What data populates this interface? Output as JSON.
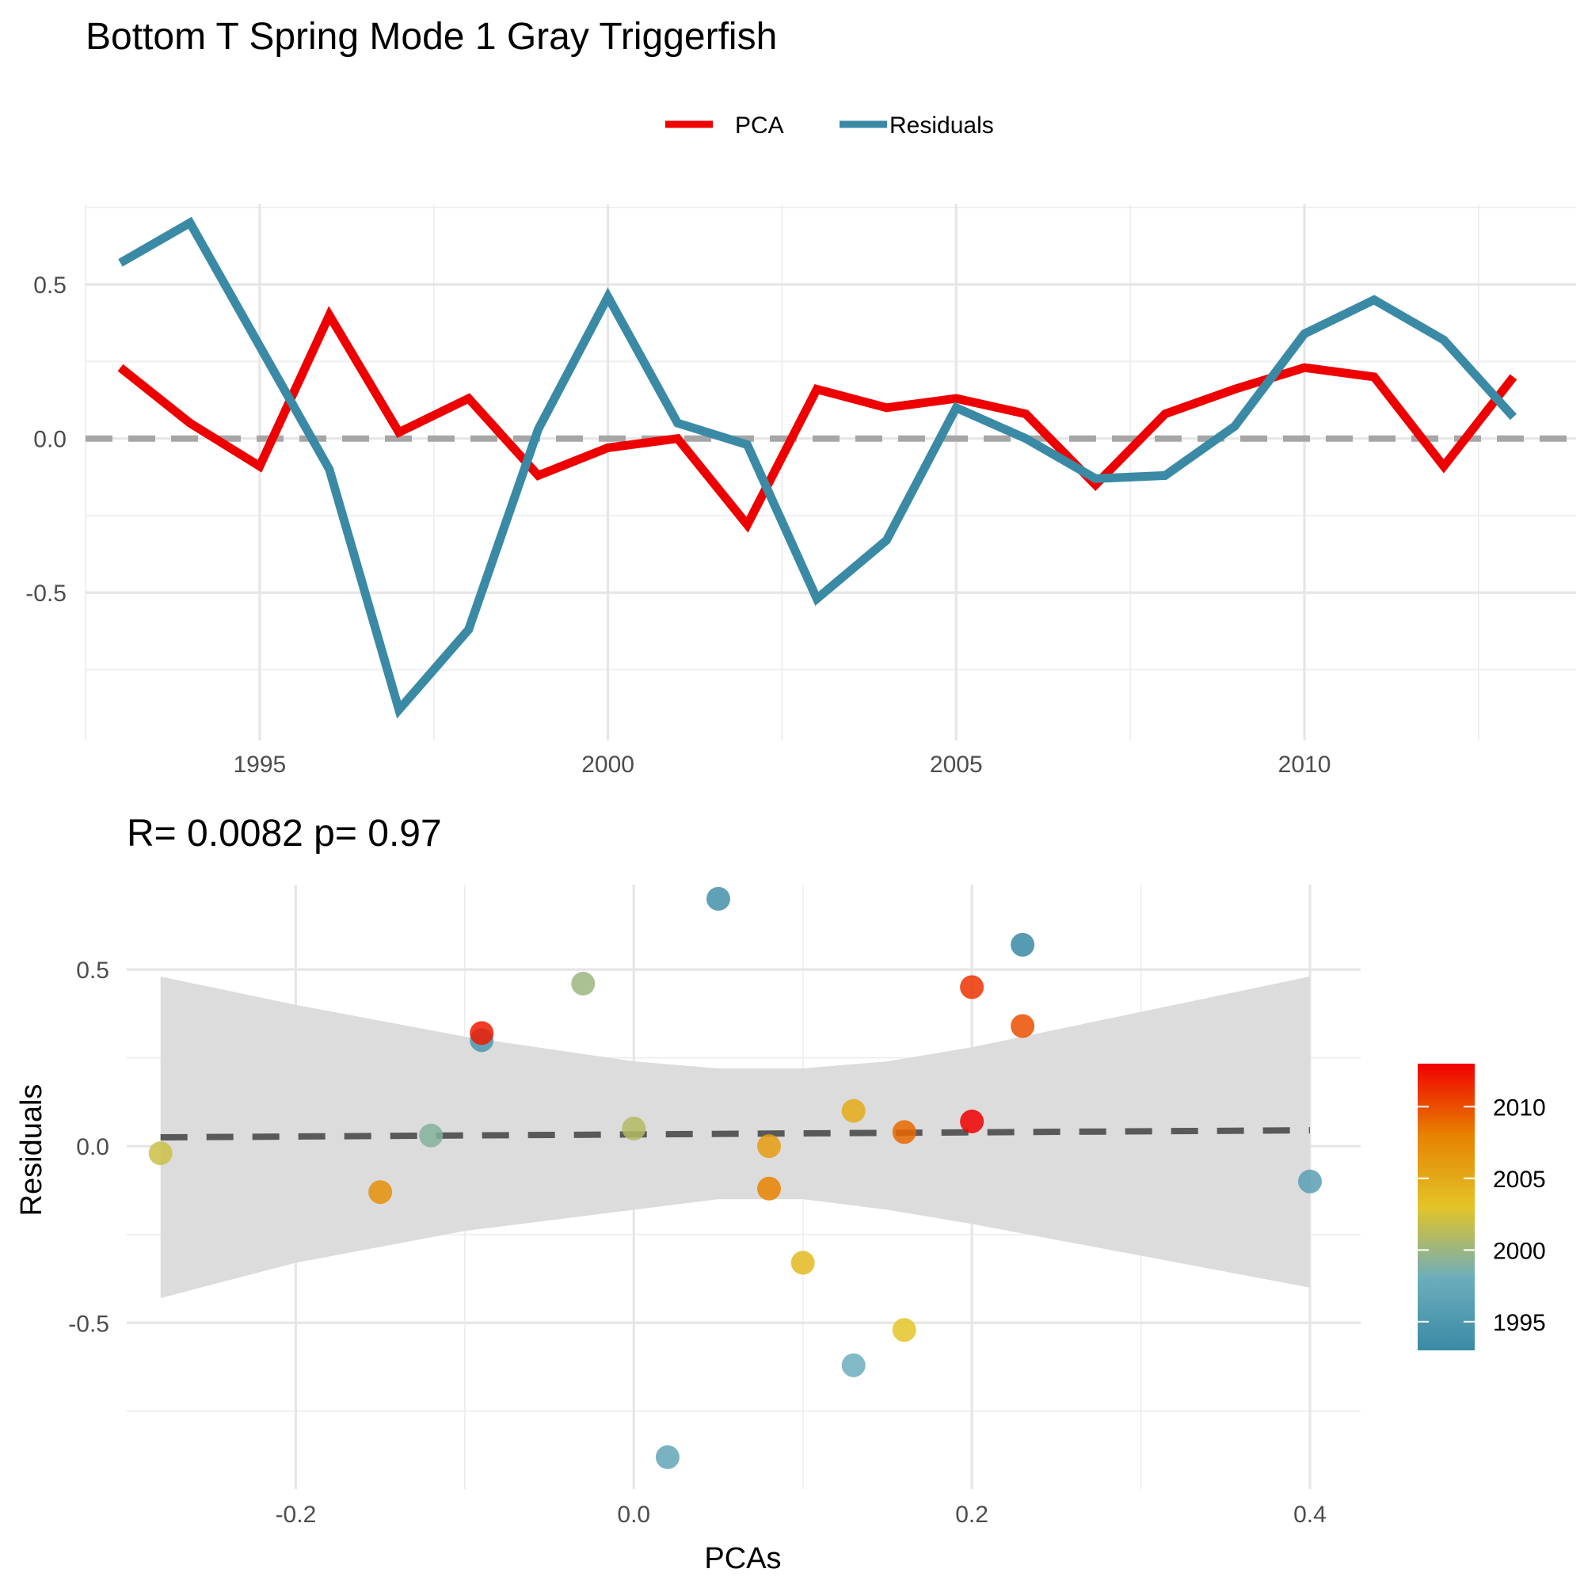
{
  "title": "Bottom T Spring Mode 1 Gray Triggerfish",
  "colors": {
    "pca": "#ee0000",
    "residuals": "#3a8aa5",
    "zero_line": "#a6a6a6",
    "fit_line": "#595959",
    "ribbon": "#dcdcdc",
    "gradient": [
      "#3a8aa5",
      "#6cadbc",
      "#e3c428",
      "#e78200",
      "#f00000"
    ]
  },
  "chart_data": [
    {
      "type": "line",
      "title": "",
      "legend": {
        "position": "top",
        "entries": [
          "PCA",
          "Residuals"
        ]
      },
      "x": [
        1993,
        1994,
        1995,
        1996,
        1997,
        1998,
        1999,
        2000,
        2001,
        2002,
        2003,
        2004,
        2005,
        2006,
        2007,
        2008,
        2009,
        2010,
        2011,
        2012,
        2013
      ],
      "series": [
        {
          "name": "PCA",
          "color": "#ee0000",
          "values": [
            0.23,
            0.05,
            -0.09,
            0.4,
            0.02,
            0.13,
            -0.12,
            -0.03,
            0.0,
            -0.28,
            0.16,
            0.1,
            0.13,
            0.08,
            -0.15,
            0.08,
            0.16,
            0.23,
            0.2,
            -0.09,
            0.2
          ]
        },
        {
          "name": "Residuals",
          "color": "#3a8aa5",
          "values": [
            0.57,
            0.7,
            0.3,
            -0.1,
            -0.88,
            -0.62,
            0.03,
            0.46,
            0.05,
            -0.02,
            -0.52,
            -0.33,
            0.1,
            0.0,
            -0.13,
            -0.12,
            0.04,
            0.34,
            0.45,
            0.32,
            0.07
          ]
        }
      ],
      "xlim": [
        1992.5,
        2013.9
      ],
      "ylim": [
        -0.98,
        0.76
      ],
      "xticks": [
        1995,
        2000,
        2005,
        2010
      ],
      "xtick_labels": [
        "1995",
        "2000",
        "2005",
        "2010"
      ],
      "yticks": [
        -0.5,
        0.0,
        0.5
      ],
      "ytick_labels": [
        "-0.5",
        "0.0",
        "0.5"
      ],
      "reference_line": 0,
      "grid": true
    },
    {
      "type": "scatter",
      "title": "R= 0.0082  p= 0.97",
      "xlabel": "PCAs",
      "ylabel": "Residuals",
      "xlim": [
        -0.3,
        0.43
      ],
      "ylim": [
        -0.97,
        0.74
      ],
      "xticks": [
        -0.2,
        0.0,
        0.2,
        0.4
      ],
      "xtick_labels": [
        "-0.2",
        "0.0",
        "0.2",
        "0.4"
      ],
      "yticks": [
        -0.5,
        0.0,
        0.5
      ],
      "ytick_labels": [
        "-0.5",
        "0.0",
        "0.5"
      ],
      "points": [
        {
          "x": 0.23,
          "y": 0.57,
          "year": 1993
        },
        {
          "x": 0.05,
          "y": 0.7,
          "year": 1994
        },
        {
          "x": -0.09,
          "y": 0.3,
          "year": 1995
        },
        {
          "x": 0.4,
          "y": -0.1,
          "year": 1996
        },
        {
          "x": 0.02,
          "y": -0.88,
          "year": 1997
        },
        {
          "x": 0.13,
          "y": -0.62,
          "year": 1998
        },
        {
          "x": -0.12,
          "y": 0.03,
          "year": 1999
        },
        {
          "x": -0.03,
          "y": 0.46,
          "year": 2000
        },
        {
          "x": 0.0,
          "y": 0.05,
          "year": 2001
        },
        {
          "x": -0.28,
          "y": -0.02,
          "year": 2002
        },
        {
          "x": 0.16,
          "y": -0.52,
          "year": 2003
        },
        {
          "x": 0.1,
          "y": -0.33,
          "year": 2004
        },
        {
          "x": 0.13,
          "y": 0.1,
          "year": 2005
        },
        {
          "x": 0.08,
          "y": 0.0,
          "year": 2006
        },
        {
          "x": -0.15,
          "y": -0.13,
          "year": 2007
        },
        {
          "x": 0.08,
          "y": -0.12,
          "year": 2008
        },
        {
          "x": 0.16,
          "y": 0.04,
          "year": 2009
        },
        {
          "x": 0.23,
          "y": 0.34,
          "year": 2010
        },
        {
          "x": 0.2,
          "y": 0.45,
          "year": 2011
        },
        {
          "x": -0.09,
          "y": 0.32,
          "year": 2012
        },
        {
          "x": 0.2,
          "y": 0.07,
          "year": 2013
        }
      ],
      "fit": {
        "x": [
          -0.28,
          0.4
        ],
        "y": [
          0.025,
          0.045
        ]
      },
      "confidence_band": {
        "x": [
          -0.28,
          -0.2,
          -0.1,
          0.0,
          0.05,
          0.1,
          0.15,
          0.2,
          0.3,
          0.4
        ],
        "upper": [
          0.48,
          0.4,
          0.31,
          0.24,
          0.22,
          0.22,
          0.24,
          0.28,
          0.38,
          0.48
        ],
        "lower": [
          -0.43,
          -0.33,
          -0.24,
          -0.18,
          -0.15,
          -0.15,
          -0.18,
          -0.22,
          -0.31,
          -0.4
        ]
      },
      "colorbar": {
        "ticks": [
          1995,
          2000,
          2005,
          2010
        ],
        "tick_labels": [
          "1995",
          "2000",
          "2005",
          "2010"
        ],
        "range": [
          1993,
          2013
        ]
      },
      "grid": true
    }
  ]
}
